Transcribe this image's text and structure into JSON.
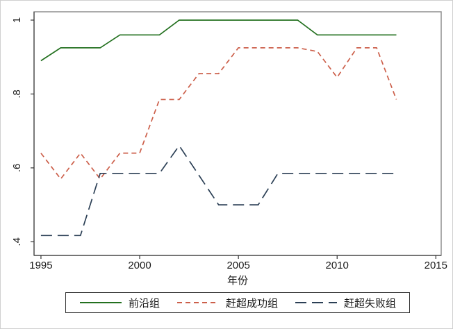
{
  "figure": {
    "background": "#ffffff",
    "frame_color": "#cfcfcf",
    "plot_border_color": "#8f8f8f",
    "axis_color": "#333333",
    "text_color": "#1a1a1a"
  },
  "chart_data": {
    "type": "line",
    "x": [
      1995,
      1996,
      1997,
      1998,
      1999,
      2000,
      2001,
      2002,
      2003,
      2004,
      2005,
      2006,
      2007,
      2008,
      2009,
      2010,
      2011,
      2012,
      2013
    ],
    "series": [
      {
        "name": "前沿组",
        "style": "solid",
        "color": "#23701f",
        "values": [
          0.89,
          0.925,
          0.925,
          0.925,
          0.96,
          0.96,
          0.96,
          1,
          1,
          1,
          1,
          1,
          1,
          1,
          0.96,
          0.96,
          0.96,
          0.96,
          0.96
        ]
      },
      {
        "name": "赶超成功组",
        "style": "shortdash",
        "color": "#cc5f4a",
        "values": [
          0.64,
          0.57,
          0.64,
          0.57,
          0.64,
          0.64,
          0.785,
          0.785,
          0.855,
          0.855,
          0.925,
          0.925,
          0.925,
          0.925,
          0.915,
          0.845,
          0.925,
          0.925,
          0.785
        ]
      },
      {
        "name": "赶超失败组",
        "style": "longdash",
        "color": "#2b3f55",
        "values": [
          0.417,
          0.417,
          0.417,
          0.585,
          0.585,
          0.585,
          0.585,
          0.66,
          0.58,
          0.5,
          0.5,
          0.5,
          0.585,
          0.585,
          0.585,
          0.585,
          0.585,
          0.585,
          0.585
        ]
      }
    ],
    "title": "",
    "xlabel": "年份",
    "ylabel": "",
    "x_ticks": [
      {
        "label": "1995",
        "value": 1995
      },
      {
        "label": "2000",
        "value": 2000
      },
      {
        "label": "2005",
        "value": 2005
      },
      {
        "label": "2010",
        "value": 2010
      },
      {
        "label": "2015",
        "value": 2015
      }
    ],
    "y_ticks": [
      {
        "label": ".4",
        "value": 0.4
      },
      {
        "label": ".6",
        "value": 0.6
      },
      {
        "label": ".8",
        "value": 0.8
      },
      {
        "label": "1",
        "value": 1
      }
    ],
    "xlim": [
      1994.65,
      2015.27
    ],
    "ylim": [
      0.363,
      1.0225
    ],
    "grid": false,
    "legend_position": "bottom"
  }
}
